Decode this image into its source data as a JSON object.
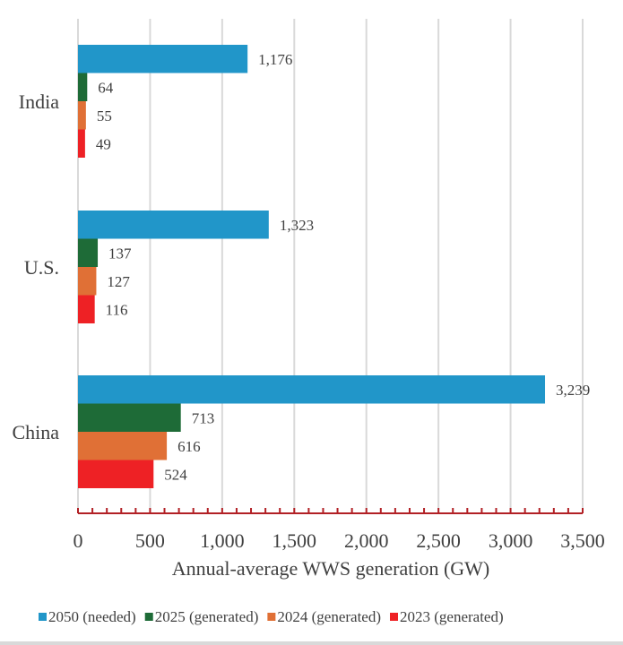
{
  "chart_data": {
    "type": "bar",
    "orientation": "horizontal",
    "title": "",
    "xlabel": "Annual-average WWS generation  (GW)",
    "ylabel": "",
    "categories": [
      "India",
      "U.S.",
      "China"
    ],
    "series": [
      {
        "name": "2050 (needed)",
        "color": "#2196c9",
        "values": [
          1176,
          1323,
          3239
        ],
        "labels": [
          "1,176",
          "1,323",
          "3,239"
        ]
      },
      {
        "name": "2025 (generated)",
        "color": "#1e6b37",
        "values": [
          64,
          137,
          713
        ],
        "labels": [
          "64",
          "137",
          "713"
        ]
      },
      {
        "name": "2024 (generated)",
        "color": "#e07036",
        "values": [
          55,
          127,
          616
        ],
        "labels": [
          "55",
          "127",
          "616"
        ]
      },
      {
        "name": "2023 (generated)",
        "color": "#ee2125",
        "values": [
          49,
          116,
          524
        ],
        "labels": [
          "49",
          "116",
          "524"
        ]
      }
    ],
    "xlim": [
      0,
      3500
    ],
    "xticks": [
      0,
      500,
      1000,
      1500,
      2000,
      2500,
      3000,
      3500
    ],
    "xtick_labels": [
      "0",
      "500",
      "1,000",
      "1,500",
      "2,000",
      "2,500",
      "3,000",
      "3,500"
    ],
    "minor_tick_step": 100,
    "grid": true,
    "legend_position": "bottom",
    "axis_color": "#b22025",
    "grid_color": "#d9d9d9"
  }
}
